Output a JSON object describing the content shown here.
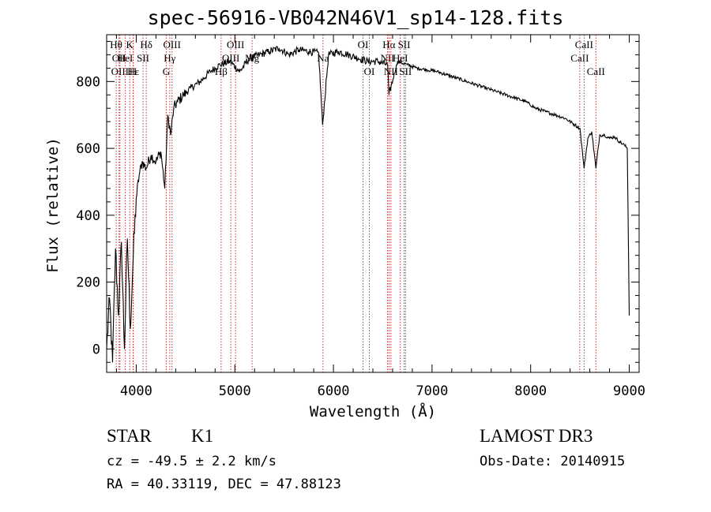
{
  "chart_data": {
    "type": "line",
    "title": "spec-56916-VB042N46V1_sp14-128.fits",
    "xlabel": "Wavelength (Å)",
    "ylabel": "Flux (relative)",
    "xlim": [
      3700,
      9100
    ],
    "ylim": [
      -70,
      940
    ],
    "x_ticks": [
      4000,
      5000,
      6000,
      7000,
      8000,
      9000
    ],
    "y_ticks": [
      0,
      200,
      400,
      600,
      800
    ],
    "grid": false,
    "series": [
      {
        "name": "flux",
        "x": [
          3700,
          3730,
          3760,
          3790,
          3820,
          3850,
          3880,
          3910,
          3940,
          3970,
          4000,
          4030,
          4060,
          4100,
          4150,
          4200,
          4250,
          4290,
          4320,
          4350,
          4380,
          4420,
          4480,
          4550,
          4650,
          4750,
          4850,
          4950,
          5050,
          5150,
          5250,
          5350,
          5450,
          5550,
          5650,
          5750,
          5850,
          5890,
          5950,
          6050,
          6150,
          6250,
          6350,
          6450,
          6550,
          6563,
          6650,
          6750,
          6850,
          6950,
          7050,
          7150,
          7250,
          7350,
          7450,
          7550,
          7650,
          7750,
          7850,
          7950,
          8050,
          8150,
          8250,
          8350,
          8450,
          8500,
          8542,
          8580,
          8620,
          8662,
          8700,
          8750,
          8800,
          8850,
          8900,
          8950,
          8980,
          9000
        ],
        "y": [
          0,
          150,
          -40,
          300,
          100,
          320,
          0,
          330,
          60,
          280,
          450,
          520,
          560,
          540,
          580,
          560,
          590,
          480,
          700,
          640,
          720,
          740,
          760,
          780,
          800,
          830,
          850,
          860,
          830,
          870,
          880,
          890,
          900,
          880,
          895,
          890,
          885,
          670,
          880,
          890,
          880,
          870,
          860,
          860,
          850,
          760,
          860,
          850,
          840,
          835,
          830,
          820,
          810,
          800,
          790,
          780,
          770,
          760,
          750,
          740,
          720,
          710,
          700,
          690,
          670,
          660,
          540,
          630,
          650,
          540,
          640,
          640,
          630,
          635,
          620,
          610,
          600,
          100
        ]
      }
    ],
    "line_markers": [
      {
        "wavelength": 3797,
        "label": "Hθ",
        "row": 1
      },
      {
        "wavelength": 3826,
        "label": "OII",
        "row": 2
      },
      {
        "wavelength": 3835,
        "label": "OIII",
        "row": 3
      },
      {
        "wavelength": 3889,
        "label": "HeI",
        "row": 2
      },
      {
        "wavelength": 3934,
        "label": "K",
        "row": 1
      },
      {
        "wavelength": 3970,
        "label": "Hε",
        "row": 3
      },
      {
        "wavelength": 3968,
        "label": "H",
        "row": 3
      },
      {
        "wavelength": 4069,
        "label": "SII",
        "row": 2
      },
      {
        "wavelength": 4102,
        "label": "Hδ",
        "row": 1
      },
      {
        "wavelength": 4340,
        "label": "Hγ",
        "row": 2
      },
      {
        "wavelength": 4363,
        "label": "OIII",
        "row": 1
      },
      {
        "wavelength": 4304,
        "label": "G",
        "row": 3
      },
      {
        "wavelength": 4861,
        "label": "Hβ",
        "row": 3
      },
      {
        "wavelength": 4959,
        "label": "OIII",
        "row": 2
      },
      {
        "wavelength": 5007,
        "label": "OIII",
        "row": 1
      },
      {
        "wavelength": 5175,
        "label": "Mg",
        "row": 2
      },
      {
        "wavelength": 5894,
        "label": "Na",
        "row": 2
      },
      {
        "wavelength": 6300,
        "label": "OI",
        "row": 1
      },
      {
        "wavelength": 6364,
        "label": "OI",
        "row": 3
      },
      {
        "wavelength": 6548,
        "label": "NII",
        "row": 2
      },
      {
        "wavelength": 6563,
        "label": "Hα",
        "row": 1
      },
      {
        "wavelength": 6583,
        "label": "NII",
        "row": 3
      },
      {
        "wavelength": 6678,
        "label": "HeI",
        "row": 2
      },
      {
        "wavelength": 6717,
        "label": "SII",
        "row": 1
      },
      {
        "wavelength": 6731,
        "label": "SII",
        "row": 3
      },
      {
        "wavelength": 8498,
        "label": "CaII",
        "row": 2
      },
      {
        "wavelength": 8542,
        "label": "CaII",
        "row": 1
      },
      {
        "wavelength": 8662,
        "label": "CaII",
        "row": 3
      }
    ]
  },
  "info": {
    "object_class": "STAR",
    "subclass": "K1",
    "cz": "cz = -49.5 ± 2.2 km/s",
    "coords": "RA =  40.33119, DEC =  47.88123",
    "survey": "LAMOST DR3",
    "obs_date": "Obs-Date: 20140915"
  }
}
